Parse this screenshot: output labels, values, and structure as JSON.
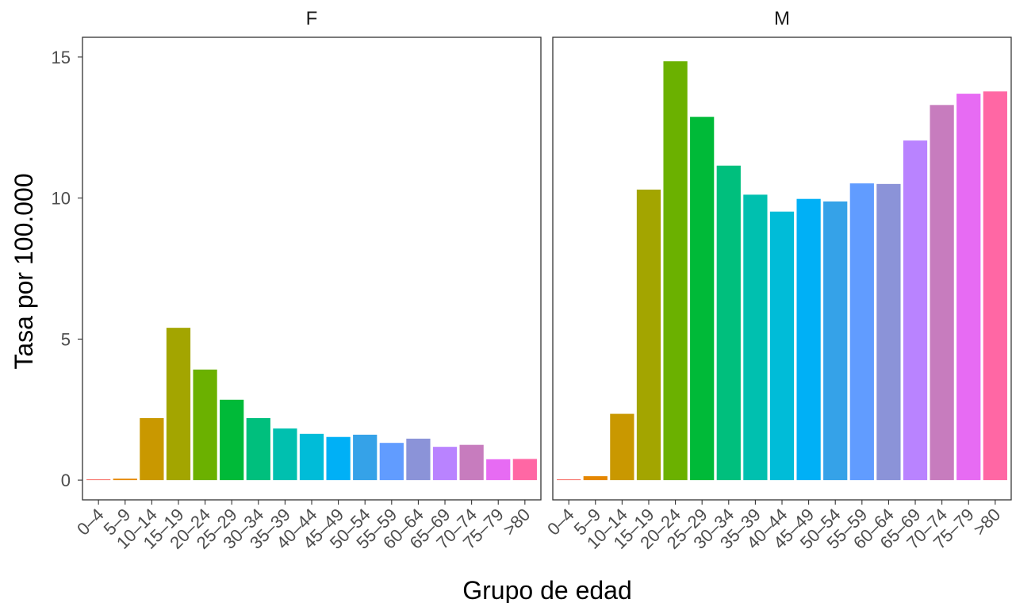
{
  "chart_data": {
    "type": "bar",
    "xlabel": "Grupo de edad",
    "ylabel": "Tasa por 100.000",
    "ylim": [
      -0.7,
      15.7
    ],
    "yticks": [
      0,
      5,
      10,
      15
    ],
    "grid": false,
    "legend": "none",
    "categories": [
      "0–4",
      "5–9",
      "10–14",
      "15–19",
      "20–24",
      "25–29",
      "30–34",
      "35–39",
      "40–44",
      "45–49",
      "50–54",
      "55–59",
      "60–64",
      "65–69",
      "70–74",
      "75–79",
      ">80"
    ],
    "colors": [
      "#F8766D",
      "#E58700",
      "#C99800",
      "#A3A500",
      "#6BB100",
      "#00BA38",
      "#00BF7D",
      "#00C0AF",
      "#00BCD8",
      "#00B0F6",
      "#35A2E8",
      "#619CFF",
      "#8B93D8",
      "#B983FF",
      "#C77CBE",
      "#E76BF3",
      "#FF67A4"
    ],
    "facets": [
      {
        "name": "F",
        "values": [
          0.03,
          0.05,
          2.2,
          5.4,
          3.92,
          2.85,
          2.2,
          1.83,
          1.64,
          1.53,
          1.61,
          1.32,
          1.47,
          1.18,
          1.25,
          0.74,
          0.75
        ]
      },
      {
        "name": "M",
        "values": [
          0.03,
          0.14,
          2.35,
          10.3,
          14.85,
          12.88,
          11.15,
          10.12,
          9.52,
          9.97,
          9.88,
          10.52,
          10.5,
          12.04,
          13.3,
          13.7,
          13.78
        ]
      }
    ]
  }
}
